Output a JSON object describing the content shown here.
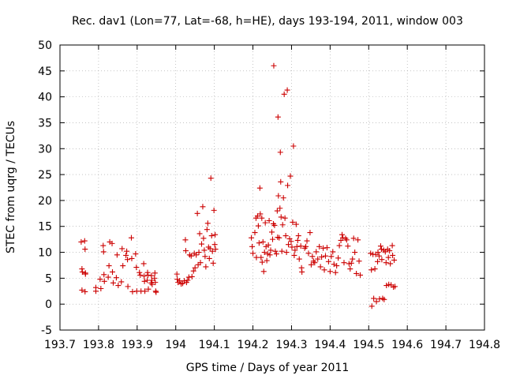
{
  "chart_data": {
    "type": "scatter",
    "title": "Rec. dav1 (Lon=77, Lat=-68, h=HE), days 193-194, 2011, window 003",
    "xlabel": "GPS time / Days of year 2011",
    "ylabel": "STEC from uqrg / TECUs",
    "xlim": [
      193.7,
      194.8
    ],
    "ylim": [
      -5,
      50
    ],
    "x_ticks": [
      "193.7",
      "193.8",
      "193.9",
      "194",
      "194.1",
      "194.2",
      "194.3",
      "194.4",
      "194.5",
      "194.6",
      "194.7",
      "194.8"
    ],
    "y_ticks": [
      "-5",
      "0",
      "5",
      "10",
      "15",
      "20",
      "25",
      "30",
      "35",
      "40",
      "45",
      "50"
    ],
    "grid": true,
    "marker": "+",
    "color": "#cc0000",
    "series": [
      {
        "points": [
          [
            193.755,
            12.0
          ],
          [
            193.757,
            6.8
          ],
          [
            193.758,
            6.2
          ],
          [
            193.757,
            2.7
          ],
          [
            193.764,
            12.2
          ],
          [
            193.765,
            10.6
          ],
          [
            193.766,
            6.0
          ],
          [
            193.766,
            5.8
          ],
          [
            193.765,
            2.4
          ],
          [
            193.793,
            3.2
          ],
          [
            193.793,
            2.5
          ],
          [
            193.804,
            4.8
          ],
          [
            193.806,
            3.0
          ],
          [
            193.812,
            11.3
          ],
          [
            193.813,
            10.1
          ],
          [
            193.814,
            5.7
          ],
          [
            193.815,
            4.4
          ],
          [
            193.825,
            5.2
          ],
          [
            193.827,
            7.4
          ],
          [
            193.829,
            12.0
          ],
          [
            193.835,
            11.7
          ],
          [
            193.836,
            6.2
          ],
          [
            193.838,
            4.1
          ],
          [
            193.846,
            5.1
          ],
          [
            193.848,
            9.5
          ],
          [
            193.851,
            3.6
          ],
          [
            193.859,
            4.3
          ],
          [
            193.861,
            10.7
          ],
          [
            193.863,
            7.4
          ],
          [
            193.871,
            9.4
          ],
          [
            193.873,
            10.2
          ],
          [
            193.875,
            8.6
          ],
          [
            193.876,
            3.4
          ],
          [
            193.885,
            12.8
          ],
          [
            193.886,
            8.8
          ],
          [
            193.888,
            2.4
          ],
          [
            193.896,
            9.7
          ],
          [
            193.898,
            7.1
          ],
          [
            193.899,
            2.5
          ],
          [
            193.906,
            6.1
          ],
          [
            193.908,
            5.6
          ],
          [
            193.91,
            2.5
          ],
          [
            193.917,
            7.8
          ],
          [
            193.918,
            5.4
          ],
          [
            193.919,
            4.4
          ],
          [
            193.92,
            2.5
          ],
          [
            193.926,
            4.6
          ],
          [
            193.927,
            6.1
          ],
          [
            193.928,
            5.6
          ],
          [
            193.929,
            2.9
          ],
          [
            193.936,
            4.1
          ],
          [
            193.937,
            5.5
          ],
          [
            193.938,
            4.6
          ],
          [
            193.939,
            3.8
          ],
          [
            193.945,
            5.0
          ],
          [
            193.946,
            6.0
          ],
          [
            193.947,
            4.2
          ],
          [
            193.948,
            2.5
          ],
          [
            193.949,
            2.3
          ],
          [
            194.003,
            5.8
          ],
          [
            194.004,
            4.8
          ],
          [
            194.006,
            4.2
          ],
          [
            194.01,
            4.5
          ],
          [
            194.014,
            3.9
          ],
          [
            194.018,
            4.0
          ],
          [
            194.022,
            4.5
          ],
          [
            194.026,
            10.3
          ],
          [
            194.025,
            12.4
          ],
          [
            194.028,
            4.2
          ],
          [
            194.031,
            4.6
          ],
          [
            194.034,
            5.2
          ],
          [
            194.036,
            9.5
          ],
          [
            194.04,
            9.3
          ],
          [
            194.042,
            5.3
          ],
          [
            194.046,
            6.4
          ],
          [
            194.048,
            9.8
          ],
          [
            194.05,
            7.0
          ],
          [
            194.053,
            9.5
          ],
          [
            194.056,
            17.5
          ],
          [
            194.058,
            7.6
          ],
          [
            194.06,
            10.0
          ],
          [
            194.062,
            13.6
          ],
          [
            194.064,
            8.0
          ],
          [
            194.067,
            11.6
          ],
          [
            194.07,
            18.8
          ],
          [
            194.072,
            12.7
          ],
          [
            194.074,
            10.4
          ],
          [
            194.076,
            9.2
          ],
          [
            194.078,
            7.2
          ],
          [
            194.081,
            14.4
          ],
          [
            194.083,
            15.6
          ],
          [
            194.085,
            11.0
          ],
          [
            194.087,
            8.8
          ],
          [
            194.089,
            10.7
          ],
          [
            194.091,
            24.3
          ],
          [
            194.093,
            13.2
          ],
          [
            194.095,
            10.2
          ],
          [
            194.097,
            7.9
          ],
          [
            194.099,
            18.1
          ],
          [
            194.101,
            11.5
          ],
          [
            194.102,
            13.4
          ],
          [
            194.103,
            10.6
          ],
          [
            194.196,
            12.8
          ],
          [
            194.198,
            11.1
          ],
          [
            194.2,
            9.8
          ],
          [
            194.205,
            13.8
          ],
          [
            194.208,
            16.6
          ],
          [
            194.209,
            9.0
          ],
          [
            194.212,
            17.0
          ],
          [
            194.214,
            15.1
          ],
          [
            194.216,
            11.8
          ],
          [
            194.218,
            22.4
          ],
          [
            194.219,
            17.4
          ],
          [
            194.221,
            9.0
          ],
          [
            194.223,
            16.6
          ],
          [
            194.224,
            8.1
          ],
          [
            194.226,
            12.0
          ],
          [
            194.228,
            6.3
          ],
          [
            194.23,
            10.0
          ],
          [
            194.232,
            15.7
          ],
          [
            194.234,
            11.1
          ],
          [
            194.236,
            8.4
          ],
          [
            194.238,
            9.7
          ],
          [
            194.24,
            11.4
          ],
          [
            194.242,
            16.1
          ],
          [
            194.244,
            9.5
          ],
          [
            194.246,
            10.4
          ],
          [
            194.249,
            13.9
          ],
          [
            194.251,
            12.5
          ],
          [
            194.253,
            15.5
          ],
          [
            194.254,
            46.0
          ],
          [
            194.256,
            15.2
          ],
          [
            194.258,
            10.2
          ],
          [
            194.261,
            9.7
          ],
          [
            194.263,
            18.0
          ],
          [
            194.264,
            12.9
          ],
          [
            194.265,
            36.1
          ],
          [
            194.266,
            20.9
          ],
          [
            194.268,
            12.8
          ],
          [
            194.27,
            18.5
          ],
          [
            194.271,
            29.3
          ],
          [
            194.272,
            23.6
          ],
          [
            194.273,
            16.8
          ],
          [
            194.275,
            10.2
          ],
          [
            194.277,
            15.3
          ],
          [
            194.279,
            20.5
          ],
          [
            194.281,
            40.5
          ],
          [
            194.283,
            16.6
          ],
          [
            194.285,
            13.2
          ],
          [
            194.287,
            10.0
          ],
          [
            194.289,
            41.3
          ],
          [
            194.29,
            22.9
          ],
          [
            194.292,
            11.5
          ],
          [
            194.295,
            12.6
          ],
          [
            194.297,
            24.7
          ],
          [
            194.299,
            12.1
          ],
          [
            194.301,
            11.0
          ],
          [
            194.303,
            15.8
          ],
          [
            194.305,
            30.5
          ],
          [
            194.307,
            9.4
          ],
          [
            194.309,
            10.4
          ],
          [
            194.312,
            15.4
          ],
          [
            194.314,
            11.1
          ],
          [
            194.316,
            12.3
          ],
          [
            194.318,
            13.2
          ],
          [
            194.32,
            8.7
          ],
          [
            194.324,
            11.2
          ],
          [
            194.326,
            7.0
          ],
          [
            194.327,
            6.2
          ],
          [
            194.334,
            10.8
          ],
          [
            194.337,
            11.1
          ],
          [
            194.34,
            12.2
          ],
          [
            194.344,
            9.8
          ],
          [
            194.348,
            13.8
          ],
          [
            194.351,
            7.6
          ],
          [
            194.354,
            9.2
          ],
          [
            194.357,
            8.3
          ],
          [
            194.36,
            8.0
          ],
          [
            194.364,
            10.1
          ],
          [
            194.368,
            8.7
          ],
          [
            194.372,
            11.1
          ],
          [
            194.375,
            7.2
          ],
          [
            194.378,
            9.1
          ],
          [
            194.382,
            10.8
          ],
          [
            194.385,
            6.6
          ],
          [
            194.388,
            9.3
          ],
          [
            194.392,
            10.9
          ],
          [
            194.396,
            8.2
          ],
          [
            194.4,
            6.3
          ],
          [
            194.403,
            9.2
          ],
          [
            194.407,
            10.1
          ],
          [
            194.41,
            7.7
          ],
          [
            194.414,
            6.1
          ],
          [
            194.417,
            7.4
          ],
          [
            194.421,
            8.9
          ],
          [
            194.424,
            11.3
          ],
          [
            194.428,
            12.3
          ],
          [
            194.431,
            13.4
          ],
          [
            194.433,
            12.8
          ],
          [
            194.436,
            8.0
          ],
          [
            194.44,
            12.7
          ],
          [
            194.443,
            12.4
          ],
          [
            194.446,
            11.2
          ],
          [
            194.449,
            7.8
          ],
          [
            194.452,
            6.8
          ],
          [
            194.455,
            7.9
          ],
          [
            194.458,
            8.7
          ],
          [
            194.461,
            12.7
          ],
          [
            194.464,
            10.0
          ],
          [
            194.468,
            5.9
          ],
          [
            194.472,
            12.4
          ],
          [
            194.475,
            8.3
          ],
          [
            194.478,
            5.6
          ],
          [
            194.505,
            9.8
          ],
          [
            194.507,
            6.6
          ],
          [
            194.508,
            -0.4
          ],
          [
            194.511,
            9.6
          ],
          [
            194.513,
            1.1
          ],
          [
            194.516,
            6.8
          ],
          [
            194.518,
            9.6
          ],
          [
            194.52,
            0.5
          ],
          [
            194.523,
            8.2
          ],
          [
            194.524,
            10.0
          ],
          [
            194.527,
            9.3
          ],
          [
            194.528,
            1.0
          ],
          [
            194.531,
            11.2
          ],
          [
            194.533,
            10.6
          ],
          [
            194.534,
            8.6
          ],
          [
            194.536,
            1.1
          ],
          [
            194.539,
            10.4
          ],
          [
            194.54,
            0.9
          ],
          [
            194.543,
            10.1
          ],
          [
            194.545,
            8.0
          ],
          [
            194.546,
            3.6
          ],
          [
            194.549,
            10.6
          ],
          [
            194.551,
            9.0
          ],
          [
            194.552,
            3.8
          ],
          [
            194.554,
            10.3
          ],
          [
            194.556,
            7.8
          ],
          [
            194.558,
            3.7
          ],
          [
            194.561,
            11.3
          ],
          [
            194.562,
            9.4
          ],
          [
            194.564,
            3.3
          ],
          [
            194.566,
            8.5
          ],
          [
            194.568,
            3.4
          ]
        ]
      }
    ]
  }
}
